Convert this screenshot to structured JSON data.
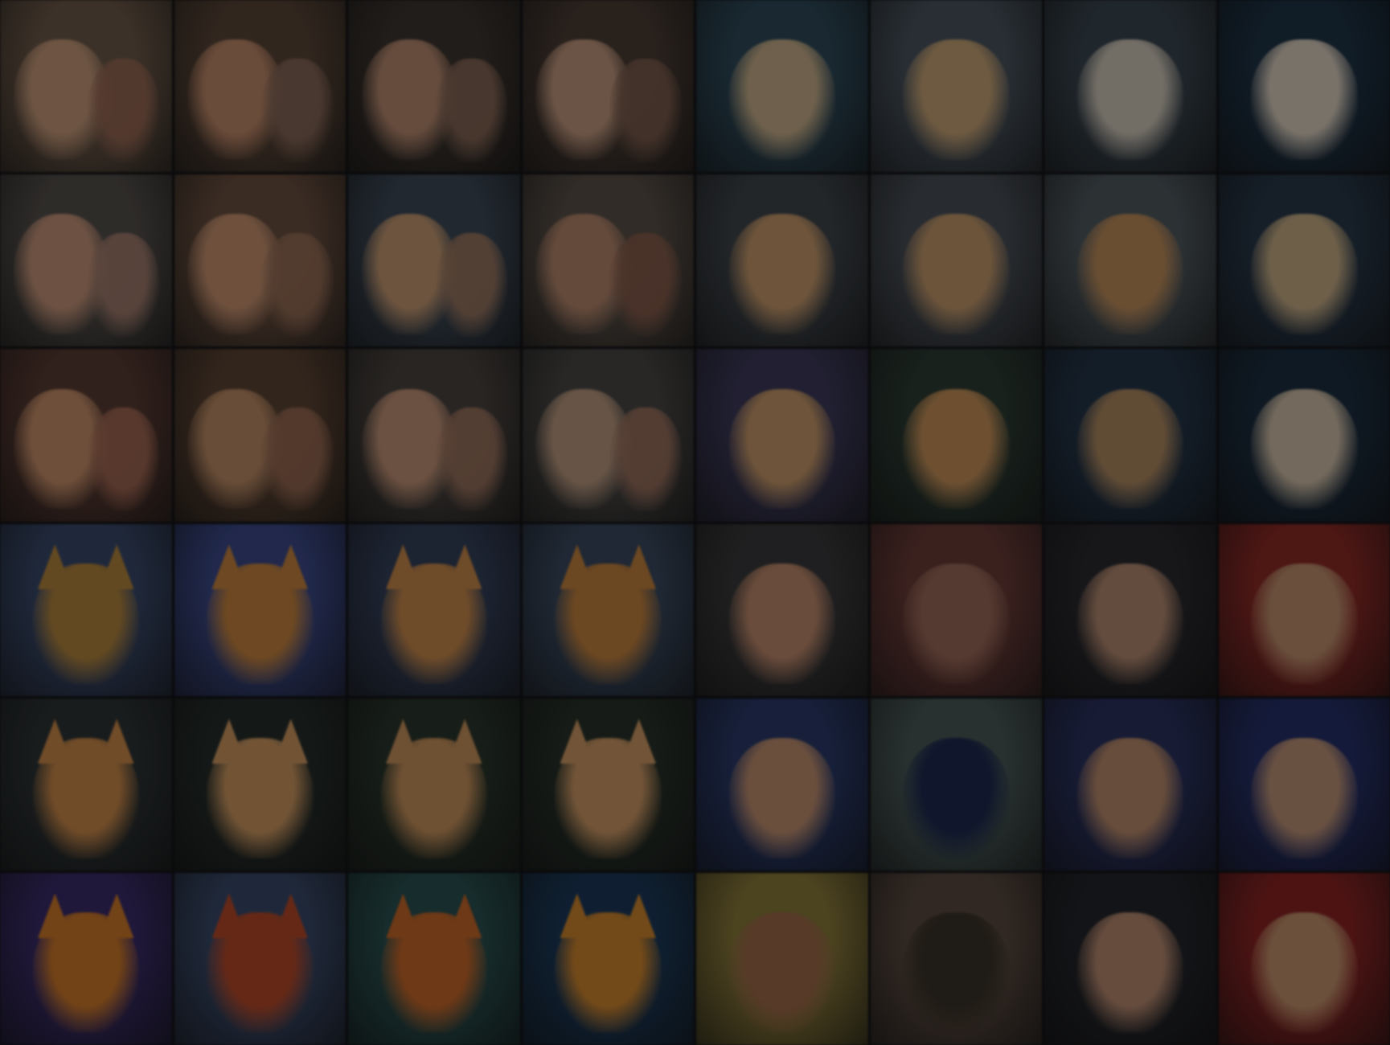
{
  "gallery": {
    "columns": 8,
    "rows": 6,
    "overlay_color": "#000000",
    "tiles": [
      {
        "subject": "couple-portrait",
        "bg": "#6e5a4a",
        "fg": "#c79a7a",
        "fg2": "#9b6a55"
      },
      {
        "subject": "couple-portrait",
        "bg": "#5a4638",
        "fg": "#c28a6a",
        "fg2": "#8a6a5a"
      },
      {
        "subject": "couple-portrait",
        "bg": "#3d3530",
        "fg": "#b88a70",
        "fg2": "#8a6a58"
      },
      {
        "subject": "couple-portrait",
        "bg": "#4a3c34",
        "fg": "#c49a80",
        "fg2": "#7e5e4e"
      },
      {
        "subject": "pomeranian-dog",
        "bg": "#2e4a5a",
        "fg": "#c9b08a",
        "fg2": null
      },
      {
        "subject": "pomeranian-dog",
        "bg": "#4a5560",
        "fg": "#c8a476",
        "fg2": null
      },
      {
        "subject": "pomeranian-dog",
        "bg": "#3a4650",
        "fg": "#cfc6b8",
        "fg2": null
      },
      {
        "subject": "pomeranian-dog",
        "bg": "#1e3346",
        "fg": "#ddd0c0",
        "fg2": null
      },
      {
        "subject": "couple-portrait",
        "bg": "#55504c",
        "fg": "#c7957a",
        "fg2": "#a88070"
      },
      {
        "subject": "couple-portrait",
        "bg": "#6a5040",
        "fg": "#c89270",
        "fg2": "#9a7058"
      },
      {
        "subject": "couple-portrait",
        "bg": "#3e4a58",
        "fg": "#c79a72",
        "fg2": "#a07a62"
      },
      {
        "subject": "couple-portrait",
        "bg": "#5a5048",
        "fg": "#b6876c",
        "fg2": "#8a5e4c"
      },
      {
        "subject": "pomeranian-dog",
        "bg": "#40464c",
        "fg": "#c89a6c",
        "fg2": null
      },
      {
        "subject": "pomeranian-dog",
        "bg": "#4a5058",
        "fg": "#c59a6c",
        "fg2": null
      },
      {
        "subject": "pomeranian-dog",
        "bg": "#505a60",
        "fg": "#c08e5c",
        "fg2": null
      },
      {
        "subject": "pomeranian-dog",
        "bg": "#28384a",
        "fg": "#c8ae86",
        "fg2": null
      },
      {
        "subject": "couple-portrait",
        "bg": "#5a3c34",
        "fg": "#c8906a",
        "fg2": "#a86c56"
      },
      {
        "subject": "couple-portrait",
        "bg": "#5c4434",
        "fg": "#bd8c66",
        "fg2": "#9c6c54"
      },
      {
        "subject": "couple-portrait",
        "bg": "#4a4440",
        "fg": "#c49478",
        "fg2": "#a07660"
      },
      {
        "subject": "couple-portrait",
        "bg": "#4a4846",
        "fg": "#bc9a80",
        "fg2": "#a07460"
      },
      {
        "subject": "pomeranian-dog",
        "bg": "#3c3a5a",
        "fg": "#c99a6a",
        "fg2": null
      },
      {
        "subject": "pomeranian-dog",
        "bg": "#2c3c34",
        "fg": "#c8925a",
        "fg2": null
      },
      {
        "subject": "pomeranian-dog",
        "bg": "#24364a",
        "fg": "#b08a62",
        "fg2": null
      },
      {
        "subject": "pomeranian-dog",
        "bg": "#1c2e40",
        "fg": "#d2c0a8",
        "fg2": null
      },
      {
        "subject": "orange-cat",
        "bg": "#3a4a6c",
        "fg": "#b5863c",
        "fg2": null
      },
      {
        "subject": "orange-cat",
        "bg": "#3c4a8a",
        "fg": "#c7843e",
        "fg2": null
      },
      {
        "subject": "orange-cat",
        "bg": "#34405a",
        "fg": "#c98a4c",
        "fg2": null
      },
      {
        "subject": "orange-cat",
        "bg": "#3a4a60",
        "fg": "#c4823e",
        "fg2": null
      },
      {
        "subject": "bearded-man",
        "bg": "#3a3a3c",
        "fg": "#c08a6c",
        "fg2": null
      },
      {
        "subject": "bearded-man",
        "bg": "#6a3c38",
        "fg": "#9a6a58",
        "fg2": null
      },
      {
        "subject": "bearded-man",
        "bg": "#2a2a30",
        "fg": "#b48a70",
        "fg2": null
      },
      {
        "subject": "bearded-man",
        "bg": "#8c2a26",
        "fg": "#c0906e",
        "fg2": null
      },
      {
        "subject": "orange-cat",
        "bg": "#2e3436",
        "fg": "#cc8a4a",
        "fg2": null
      },
      {
        "subject": "orange-cat",
        "bg": "#262e2c",
        "fg": "#d09a62",
        "fg2": null
      },
      {
        "subject": "orange-cat",
        "bg": "#2a362c",
        "fg": "#c8925c",
        "fg2": null
      },
      {
        "subject": "orange-cat",
        "bg": "#28322a",
        "fg": "#d09a66",
        "fg2": null
      },
      {
        "subject": "bearded-man",
        "bg": "#2a3a6a",
        "fg": "#c29070",
        "fg2": null
      },
      {
        "subject": "bearded-man",
        "bg": "#4a5a58",
        "fg": "#1e2a50",
        "fg2": null
      },
      {
        "subject": "bearded-man",
        "bg": "#2a3260",
        "fg": "#bc8c6c",
        "fg2": null
      },
      {
        "subject": "bearded-man",
        "bg": "#26306a",
        "fg": "#c09478",
        "fg2": null
      },
      {
        "subject": "orange-cat",
        "bg": "#3a2c6a",
        "fg": "#d07a2a",
        "fg2": null
      },
      {
        "subject": "orange-cat",
        "bg": "#3a4a6a",
        "fg": "#b84a2a",
        "fg2": null
      },
      {
        "subject": "orange-cat",
        "bg": "#2a5050",
        "fg": "#c8682a",
        "fg2": null
      },
      {
        "subject": "orange-cat",
        "bg": "#1c3a5a",
        "fg": "#d0862e",
        "fg2": null
      },
      {
        "subject": "bearded-man",
        "bg": "#8a7a3a",
        "fg": "#a06a4a",
        "fg2": null
      },
      {
        "subject": "bearded-man",
        "bg": "#5a4a40",
        "fg": "#3a3228",
        "fg2": null
      },
      {
        "subject": "bearded-man",
        "bg": "#24262c",
        "fg": "#b88a70",
        "fg2": null
      },
      {
        "subject": "bearded-man",
        "bg": "#8c2424",
        "fg": "#c4946e",
        "fg2": null
      }
    ]
  }
}
